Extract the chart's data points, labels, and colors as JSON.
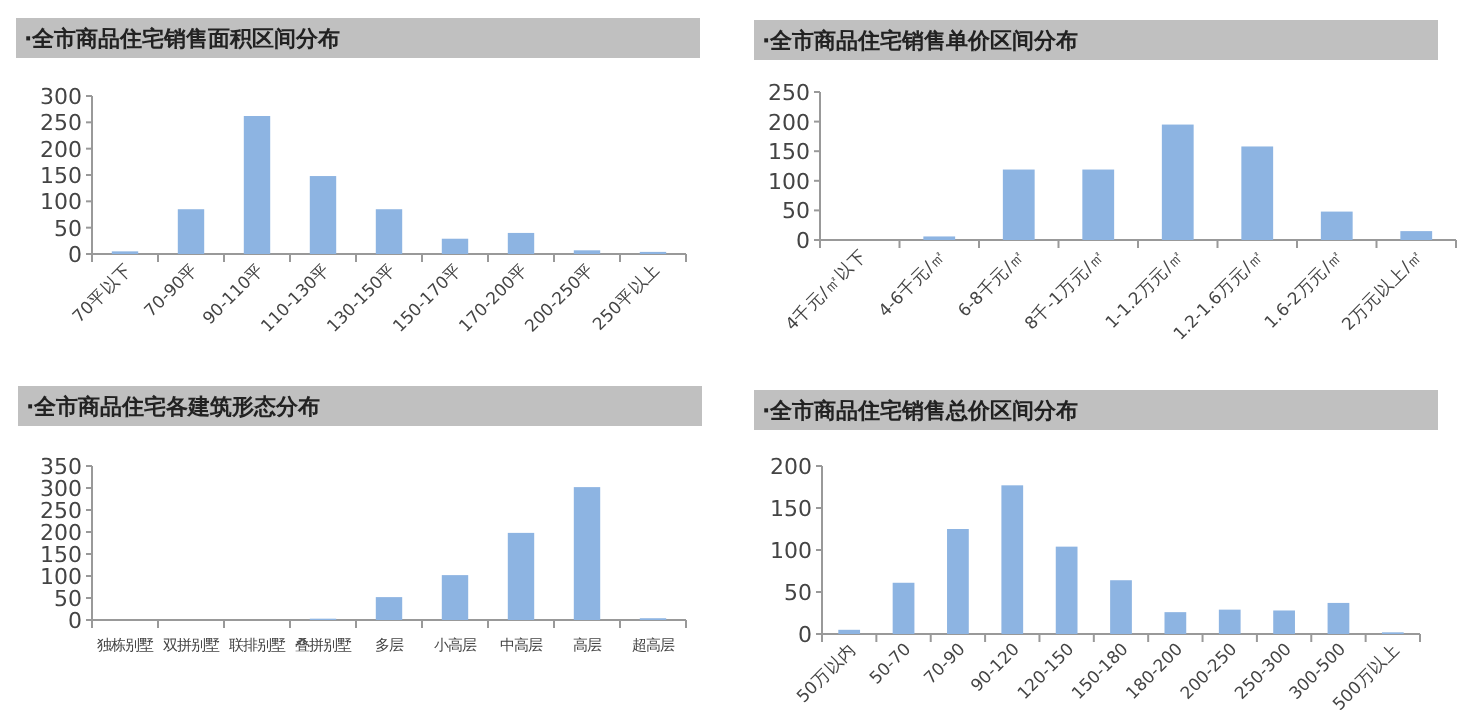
{
  "chart_data": [
    {
      "type": "bar",
      "title": "·全市商品住宅销售面积区间分布",
      "categories": [
        "70平以下",
        "70-90平",
        "90-110平",
        "110-130平",
        "130-150平",
        "150-170平",
        "170-200平",
        "200-250平",
        "250平以上"
      ],
      "values": [
        5,
        85,
        262,
        148,
        85,
        29,
        40,
        7,
        4
      ],
      "color": "#8db4e2",
      "ylim": [
        0,
        300
      ],
      "yticks": [
        0,
        50,
        100,
        150,
        200,
        250,
        300
      ]
    },
    {
      "type": "bar",
      "title": "·全市商品住宅销售单价区间分布",
      "categories": [
        "4千元/㎡以下",
        "4-6千元/㎡",
        "6-8千元/㎡",
        "8千-1万元/㎡",
        "1-1.2万元/㎡",
        "1.2-1.6万元/㎡",
        "1.6-2万元/㎡",
        "2万元以上/㎡"
      ],
      "values": [
        0,
        6,
        119,
        119,
        195,
        158,
        48,
        15
      ],
      "color": "#8db4e2",
      "ylim": [
        0,
        250
      ],
      "yticks": [
        0,
        50,
        100,
        150,
        200,
        250
      ]
    },
    {
      "type": "bar",
      "title": "·全市商品住宅各建筑形态分布",
      "categories": [
        "独栋别墅",
        "双拼别墅",
        "联排别墅",
        "叠拼别墅",
        "多层",
        "小高层",
        "中高层",
        "高层",
        "超高层"
      ],
      "values": [
        0,
        0,
        0,
        3,
        52,
        102,
        198,
        302,
        4
      ],
      "color": "#8db4e2",
      "ylim": [
        0,
        350
      ],
      "yticks": [
        0,
        50,
        100,
        150,
        200,
        250,
        300,
        350
      ]
    },
    {
      "type": "bar",
      "title": "·全市商品住宅销售总价区间分布",
      "categories": [
        "50万以内",
        "50-70",
        "70-90",
        "90-120",
        "120-150",
        "150-180",
        "180-200",
        "200-250",
        "250-300",
        "300-500",
        "500万以上"
      ],
      "values": [
        5,
        61,
        125,
        177,
        104,
        64,
        26,
        29,
        28,
        37,
        2
      ],
      "color": "#8db4e2",
      "ylim": [
        0,
        200
      ],
      "yticks": [
        0,
        50,
        100,
        150,
        200
      ]
    }
  ]
}
